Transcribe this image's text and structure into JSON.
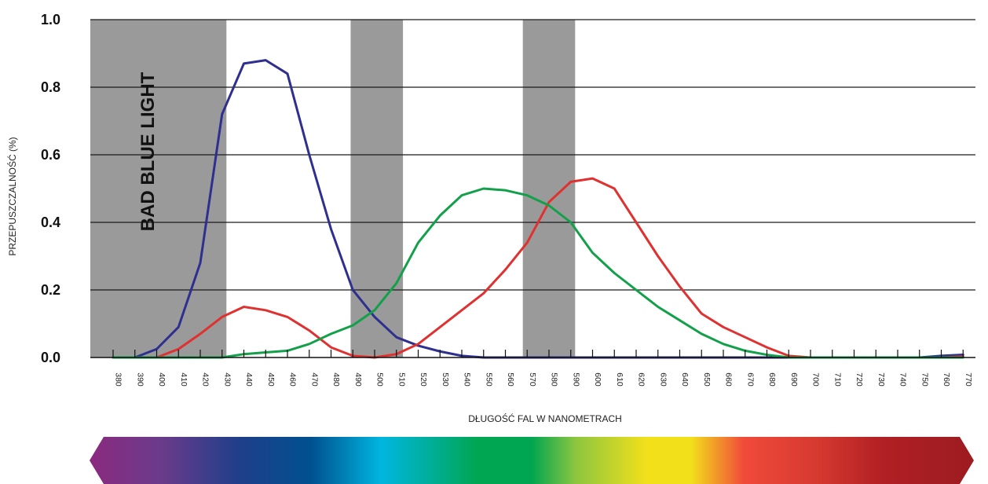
{
  "chart_data": {
    "type": "line",
    "title": "",
    "xlabel": "DŁUGOŚĆ FAL W NANOMETRACH",
    "ylabel": "PRZEPUSZCZALNOŚĆ (%)",
    "xlim": [
      380,
      770
    ],
    "ylim": [
      0,
      1.0
    ],
    "grid": true,
    "x_ticks": [
      380,
      390,
      400,
      410,
      420,
      430,
      440,
      450,
      460,
      470,
      480,
      490,
      500,
      510,
      520,
      530,
      540,
      550,
      560,
      570,
      580,
      590,
      600,
      610,
      620,
      630,
      640,
      650,
      660,
      670,
      680,
      690,
      700,
      710,
      720,
      730,
      740,
      750,
      760,
      770
    ],
    "y_ticks": [
      "0.0",
      "0.2",
      "0.4",
      "0.6",
      "0.8",
      "1.0"
    ],
    "bands": [
      {
        "x_start": 380,
        "x_end": 432,
        "label": "BAD BLUE LIGHT"
      },
      {
        "x_start": 489,
        "x_end": 513,
        "label": ""
      },
      {
        "x_start": 568,
        "x_end": 592,
        "label": ""
      }
    ],
    "series": [
      {
        "color": "#2e2f8f",
        "points": [
          [
            380,
            0.0
          ],
          [
            390,
            0.0
          ],
          [
            400,
            0.025
          ],
          [
            410,
            0.09
          ],
          [
            420,
            0.28
          ],
          [
            425,
            0.5
          ],
          [
            430,
            0.72
          ],
          [
            440,
            0.87
          ],
          [
            450,
            0.88
          ],
          [
            460,
            0.84
          ],
          [
            470,
            0.6
          ],
          [
            480,
            0.38
          ],
          [
            490,
            0.2
          ],
          [
            500,
            0.12
          ],
          [
            510,
            0.06
          ],
          [
            520,
            0.035
          ],
          [
            530,
            0.018
          ],
          [
            540,
            0.005
          ],
          [
            550,
            0.0
          ],
          [
            560,
            0.0
          ],
          [
            570,
            0.0
          ],
          [
            580,
            0.0
          ],
          [
            590,
            0.0
          ],
          [
            600,
            0.0
          ],
          [
            610,
            0.0
          ],
          [
            620,
            0.0
          ],
          [
            630,
            0.0
          ],
          [
            640,
            0.0
          ],
          [
            650,
            0.0
          ],
          [
            660,
            0.0
          ],
          [
            670,
            0.0
          ],
          [
            680,
            0.0
          ],
          [
            690,
            0.0
          ],
          [
            700,
            0.0
          ],
          [
            710,
            0.0
          ],
          [
            720,
            0.0
          ],
          [
            730,
            0.0
          ],
          [
            740,
            0.0
          ],
          [
            750,
            0.0
          ],
          [
            760,
            0.005
          ],
          [
            770,
            0.008
          ]
        ]
      },
      {
        "color": "#e03131",
        "points": [
          [
            380,
            0.0
          ],
          [
            390,
            0.0
          ],
          [
            400,
            0.0
          ],
          [
            410,
            0.025
          ],
          [
            420,
            0.07
          ],
          [
            430,
            0.12
          ],
          [
            440,
            0.15
          ],
          [
            450,
            0.14
          ],
          [
            460,
            0.12
          ],
          [
            470,
            0.08
          ],
          [
            480,
            0.03
          ],
          [
            490,
            0.005
          ],
          [
            500,
            0.0
          ],
          [
            510,
            0.01
          ],
          [
            520,
            0.04
          ],
          [
            530,
            0.09
          ],
          [
            540,
            0.14
          ],
          [
            550,
            0.19
          ],
          [
            560,
            0.26
          ],
          [
            570,
            0.34
          ],
          [
            580,
            0.46
          ],
          [
            590,
            0.52
          ],
          [
            600,
            0.53
          ],
          [
            610,
            0.5
          ],
          [
            620,
            0.4
          ],
          [
            630,
            0.3
          ],
          [
            640,
            0.21
          ],
          [
            650,
            0.13
          ],
          [
            660,
            0.09
          ],
          [
            670,
            0.06
          ],
          [
            680,
            0.03
          ],
          [
            690,
            0.005
          ],
          [
            700,
            0.0
          ],
          [
            710,
            0.0
          ],
          [
            720,
            0.0
          ],
          [
            730,
            0.0
          ],
          [
            740,
            0.0
          ],
          [
            750,
            0.0
          ],
          [
            760,
            0.0
          ],
          [
            770,
            0.003
          ]
        ]
      },
      {
        "color": "#13a04a",
        "points": [
          [
            380,
            0.0
          ],
          [
            390,
            0.0
          ],
          [
            400,
            0.0
          ],
          [
            410,
            0.0
          ],
          [
            420,
            0.0
          ],
          [
            430,
            0.0
          ],
          [
            440,
            0.01
          ],
          [
            450,
            0.015
          ],
          [
            460,
            0.02
          ],
          [
            470,
            0.04
          ],
          [
            480,
            0.07
          ],
          [
            490,
            0.095
          ],
          [
            500,
            0.14
          ],
          [
            510,
            0.22
          ],
          [
            520,
            0.34
          ],
          [
            530,
            0.42
          ],
          [
            540,
            0.48
          ],
          [
            550,
            0.5
          ],
          [
            560,
            0.495
          ],
          [
            570,
            0.48
          ],
          [
            580,
            0.45
          ],
          [
            590,
            0.4
          ],
          [
            600,
            0.31
          ],
          [
            610,
            0.25
          ],
          [
            620,
            0.2
          ],
          [
            630,
            0.15
          ],
          [
            640,
            0.11
          ],
          [
            650,
            0.07
          ],
          [
            660,
            0.04
          ],
          [
            670,
            0.02
          ],
          [
            680,
            0.008
          ],
          [
            690,
            0.0
          ],
          [
            700,
            0.0
          ],
          [
            710,
            0.0
          ],
          [
            720,
            0.0
          ],
          [
            730,
            0.0
          ],
          [
            740,
            0.0
          ],
          [
            750,
            0.0
          ],
          [
            760,
            0.0
          ],
          [
            770,
            0.0
          ]
        ]
      }
    ]
  },
  "spectrum": {
    "stops": [
      {
        "offset": 0.0,
        "color": "#8b2a7f"
      },
      {
        "offset": 0.08,
        "color": "#6b3b8a"
      },
      {
        "offset": 0.17,
        "color": "#1f3f8a"
      },
      {
        "offset": 0.25,
        "color": "#00508f"
      },
      {
        "offset": 0.33,
        "color": "#00b6e0"
      },
      {
        "offset": 0.44,
        "color": "#00a651"
      },
      {
        "offset": 0.5,
        "color": "#00a651"
      },
      {
        "offset": 0.55,
        "color": "#8dc63f"
      },
      {
        "offset": 0.63,
        "color": "#f2e01b"
      },
      {
        "offset": 0.68,
        "color": "#f2e01b"
      },
      {
        "offset": 0.74,
        "color": "#f04a3a"
      },
      {
        "offset": 0.82,
        "color": "#d73a30"
      },
      {
        "offset": 0.9,
        "color": "#b01f24"
      },
      {
        "offset": 1.0,
        "color": "#9c1c20"
      }
    ]
  }
}
